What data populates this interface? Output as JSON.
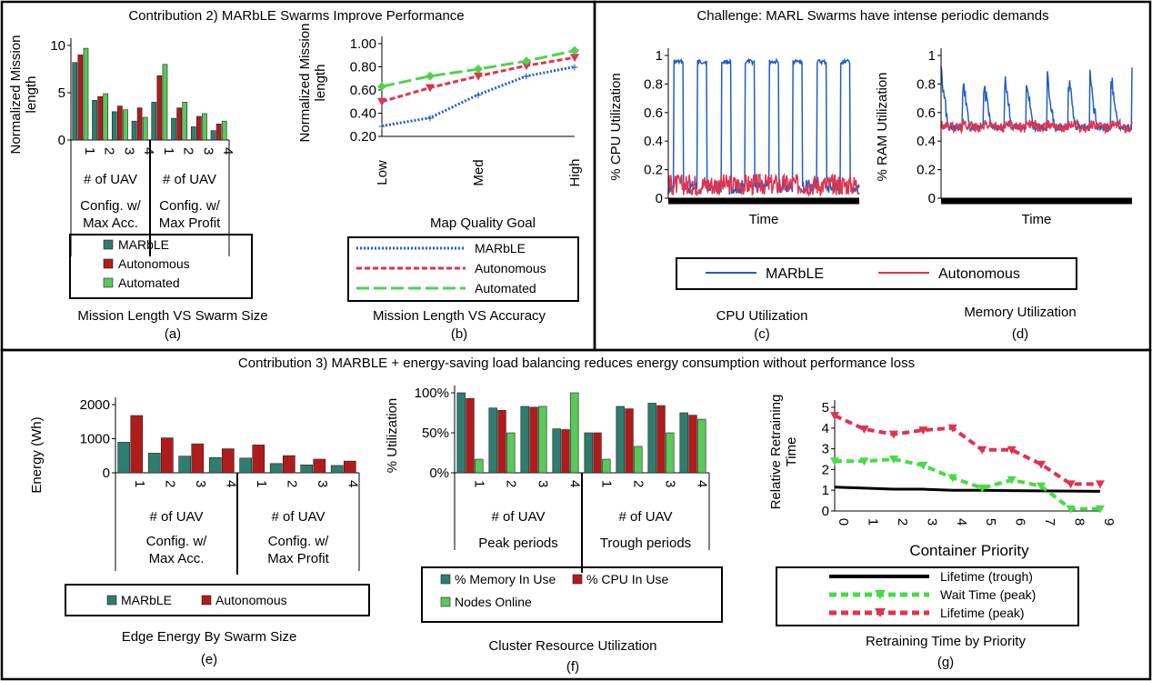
{
  "colors": {
    "marble": "#2e7d6e",
    "autonomous": "#b01c1c",
    "automated": "#58c95a",
    "marble_line": "#1f5fbf",
    "autonomous_line": "#e0334f",
    "automated_line": "#4fd24f",
    "lifetime_trough": "#000000",
    "wait_peak": "#44dd44",
    "lifetime_peak": "#e0334f"
  },
  "titles": {
    "top_left": "Contribution 2) MARbLE Swarms Improve Performance",
    "top_right": "Challenge: MARL Swarms have intense periodic demands",
    "bottom": "Contribution 3) MARBLE + energy-saving load balancing reduces energy consumption without performance loss"
  },
  "captions": {
    "a_title": "Mission Length VS Swarm Size",
    "a_label": "(a)",
    "b_title": "Mission Length VS Accuracy",
    "b_label": "(b)",
    "c_title": "CPU Utilization",
    "c_label": "(c)",
    "d_title": "Memory Utilization",
    "d_label": "(d)",
    "e_title": "Edge Energy By Swarm Size",
    "e_label": "(e)",
    "f_title": "Cluster Resource Utilization",
    "f_label": "(f)",
    "g_title": "Retraining Time by Priority",
    "g_label": "(g)"
  },
  "chart_data": [
    {
      "id": "a",
      "type": "bar",
      "ylabel": "Normalized Mission length",
      "ylim": [
        0,
        10
      ],
      "yticks": [
        "0",
        "5",
        "10"
      ],
      "categories": [
        "1",
        "2",
        "3",
        "4",
        "1",
        "2",
        "3",
        "4"
      ],
      "group_label": "# of UAV",
      "groups": [
        "Config. w/ Max Acc.",
        "Config. w/ Max Profit"
      ],
      "series": [
        {
          "name": "MARbLE",
          "values": [
            8.2,
            4.2,
            3.0,
            2.0,
            4.0,
            2.3,
            1.4,
            1.0
          ]
        },
        {
          "name": "Autonomous",
          "values": [
            9.0,
            4.6,
            3.6,
            3.4,
            6.8,
            3.4,
            2.5,
            1.7
          ]
        },
        {
          "name": "Automated",
          "values": [
            9.7,
            4.9,
            3.2,
            2.4,
            8.0,
            4.0,
            2.8,
            2.0
          ]
        }
      ]
    },
    {
      "id": "b",
      "type": "line",
      "ylabel": "Normalized Mission length",
      "xlabel": "Map Quality Goal",
      "ylim": [
        0.2,
        1.0
      ],
      "yticks": [
        "0.20",
        "0.40",
        "0.60",
        "0.80",
        "1.00"
      ],
      "xtick_labels": [
        "Low",
        "",
        "Med",
        "",
        "High"
      ],
      "x": [
        "Low",
        "",
        "Med",
        "",
        "High"
      ],
      "series": [
        {
          "name": "MARbLE",
          "values": [
            0.29,
            0.36,
            0.56,
            0.72,
            0.8
          ]
        },
        {
          "name": "Autonomous",
          "values": [
            0.5,
            0.62,
            0.72,
            0.81,
            0.88
          ]
        },
        {
          "name": "Automated",
          "values": [
            0.63,
            0.72,
            0.78,
            0.85,
            0.94
          ]
        }
      ]
    },
    {
      "id": "c",
      "type": "line",
      "ylabel": "% CPU Utilization",
      "xlabel": "Time",
      "ylim": [
        0,
        1
      ],
      "yticks": [
        "0",
        "0.2",
        "0.4",
        "0.6",
        "0.8",
        "1"
      ],
      "periods": 8,
      "series": [
        {
          "name": "MARbLE",
          "peak": 0.97,
          "base": 0.03
        },
        {
          "name": "Autonomous",
          "peak": 0.15,
          "base": 0.02
        }
      ]
    },
    {
      "id": "d",
      "type": "line",
      "ylabel": "% RAM Utilization",
      "xlabel": "Time",
      "ylim": [
        0,
        1
      ],
      "yticks": [
        "0",
        "0.2",
        "0.4",
        "0.6",
        "0.8",
        "1"
      ],
      "periods": 9,
      "series": [
        {
          "name": "MARbLE",
          "peak": 0.9,
          "base": 0.47
        },
        {
          "name": "Autonomous",
          "peak": 0.55,
          "base": 0.48
        }
      ]
    },
    {
      "id": "e",
      "type": "bar",
      "ylabel": "Energy (Wh)",
      "ylim": [
        0,
        2500
      ],
      "yticks": [
        "0",
        "1000",
        "2000"
      ],
      "categories": [
        "1",
        "2",
        "3",
        "4",
        "1",
        "2",
        "3",
        "4"
      ],
      "group_label": "# of UAV",
      "groups": [
        "Config. w/ Max Acc.",
        "Config. w/ Max Profit"
      ],
      "series": [
        {
          "name": "MARbLE",
          "values": [
            1120,
            720,
            610,
            560,
            540,
            340,
            290,
            270
          ]
        },
        {
          "name": "Autonomous",
          "values": [
            2100,
            1280,
            1060,
            880,
            1020,
            630,
            500,
            430
          ]
        }
      ]
    },
    {
      "id": "f",
      "type": "bar",
      "ylabel": "% Utilization",
      "ylim": [
        0,
        100
      ],
      "yticks": [
        "0%",
        "50%",
        "100%"
      ],
      "categories": [
        "1",
        "2",
        "3",
        "4",
        "1",
        "2",
        "3",
        "4"
      ],
      "group_label": "# of UAV",
      "groups": [
        "Peak periods",
        "Trough periods"
      ],
      "series": [
        {
          "name": "% Memory In Use",
          "values": [
            100,
            81,
            83,
            55,
            50,
            83,
            87,
            75
          ]
        },
        {
          "name": "% CPU In Use",
          "values": [
            93,
            78,
            82,
            54,
            50,
            80,
            84,
            72
          ]
        },
        {
          "name": "Nodes Online",
          "values": [
            17,
            50,
            83,
            100,
            17,
            33,
            50,
            67
          ]
        }
      ]
    },
    {
      "id": "g",
      "type": "line",
      "ylabel": "Relative Retraining Time",
      "xlabel": "Container Priority",
      "ylim": [
        0,
        5
      ],
      "yticks": [
        "0",
        "1",
        "2",
        "3",
        "4",
        "5"
      ],
      "x": [
        "0",
        "1",
        "2",
        "3",
        "4",
        "5",
        "6",
        "7",
        "8",
        "9"
      ],
      "series": [
        {
          "name": "Lifetime (trough)",
          "values": [
            1.15,
            1.1,
            1.05,
            1.05,
            1.0,
            1.0,
            0.98,
            0.97,
            0.96,
            0.95
          ]
        },
        {
          "name": "Wait Time (peak)",
          "values": [
            2.4,
            2.4,
            2.5,
            2.2,
            1.6,
            1.1,
            1.5,
            1.2,
            0.1,
            0.1
          ]
        },
        {
          "name": "Lifetime (peak)",
          "values": [
            4.6,
            3.95,
            3.7,
            3.9,
            4.0,
            2.95,
            2.95,
            2.25,
            1.3,
            1.3
          ]
        }
      ]
    }
  ]
}
